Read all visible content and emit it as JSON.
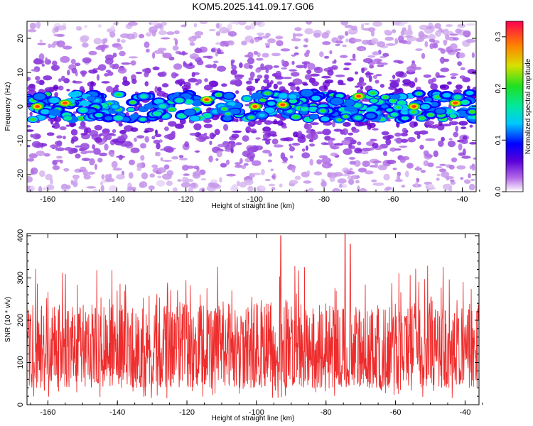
{
  "title": "KOM5.2025.141.09.17.G06",
  "chart_data": [
    {
      "type": "heatmap",
      "xlabel": "Height of straight line (km)",
      "ylabel": "Frequency (Hz)",
      "xlim": [
        -166,
        -36
      ],
      "ylim": [
        -25,
        25
      ],
      "x_ticks": [
        -160,
        -140,
        -120,
        -100,
        -80,
        -60,
        -40
      ],
      "y_ticks": [
        -20,
        -10,
        0,
        10,
        20
      ],
      "colorbar": {
        "label": "Normalized spectral amplitude",
        "range": [
          0,
          0.33
        ],
        "ticks": [
          0.0,
          0.1,
          0.2,
          0.3
        ]
      },
      "description_band": {
        "center_hz": 0,
        "half_width_hz": 4
      }
    },
    {
      "type": "line",
      "xlabel": "Height of straight line (km)",
      "ylabel": "SNR (10 * v/v)",
      "xlim": [
        -166,
        -36
      ],
      "ylim": [
        0,
        405
      ],
      "x_ticks": [
        -160,
        -140,
        -120,
        -100,
        -80,
        -60,
        -40
      ],
      "y_ticks": [
        0,
        100,
        200,
        300,
        400
      ],
      "series": [
        {
          "color": "#f03030",
          "typical_range": [
            40,
            240
          ],
          "peaks": [
            {
              "x": -93,
              "y": 400
            },
            {
              "x": -74.5,
              "y": 405
            },
            {
              "x": -73,
              "y": 380
            }
          ]
        }
      ]
    }
  ]
}
